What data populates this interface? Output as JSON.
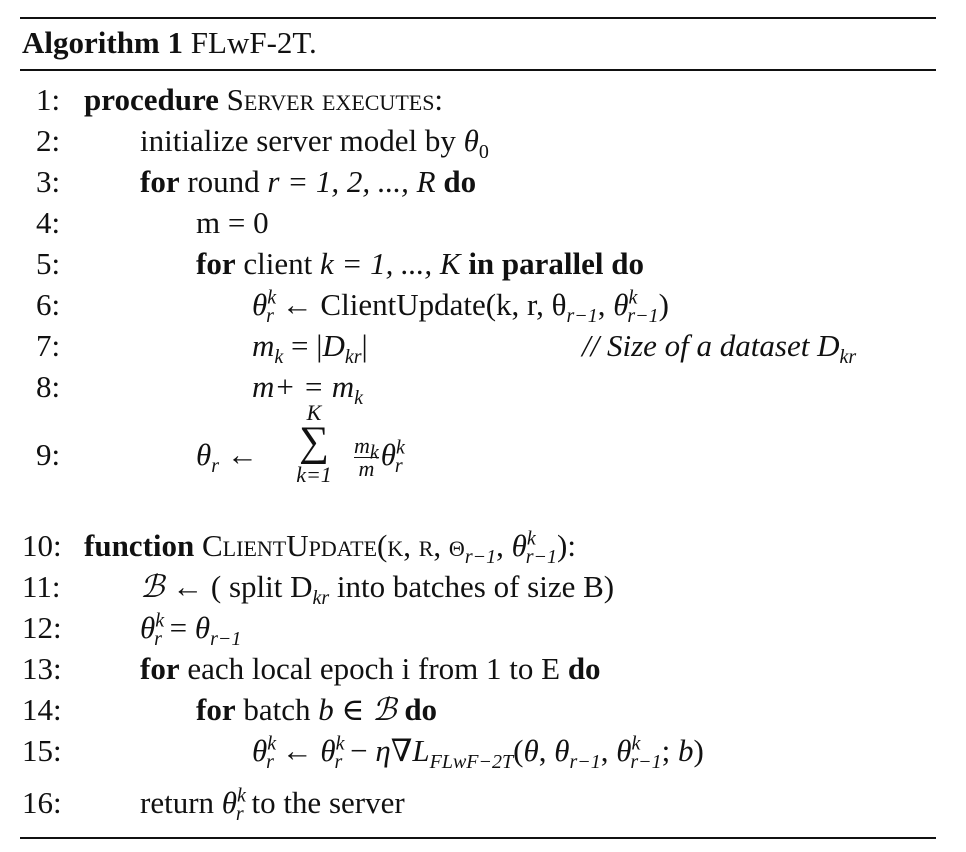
{
  "algorithm": {
    "label": "Algorithm 1",
    "name": "FLwF-2T.",
    "lines": [
      {
        "n": "1:"
      },
      {
        "n": "2:"
      },
      {
        "n": "3:"
      },
      {
        "n": "4:"
      },
      {
        "n": "5:"
      },
      {
        "n": "6:"
      },
      {
        "n": "7:"
      },
      {
        "n": "8:"
      },
      {
        "n": "9:"
      },
      {
        "n": "10:"
      },
      {
        "n": "11:"
      },
      {
        "n": "12:"
      },
      {
        "n": "13:"
      },
      {
        "n": "14:"
      },
      {
        "n": "15:"
      },
      {
        "n": "16:"
      }
    ],
    "text": {
      "procedure": "procedure",
      "server_executes": "Server executes:",
      "init": "initialize server model by",
      "theta0": "θ",
      "zero": "0",
      "for": "for",
      "round": "round",
      "r_eq": "r = 1, 2, ..., R",
      "do": "do",
      "m_eq": "m = 0",
      "client": "client",
      "k_eq": "k = 1, ..., K",
      "in_parallel_do": "in parallel do",
      "clientupdate_call": "ClientUpdate(k, r, θ",
      "m_k_eq": "m",
      "size_comment": "// Size of a dataset D",
      "mplus": "m+ = m",
      "function": "function",
      "clientupdate_def": "ClientUpdate(k, r, θ",
      "split": "( split D",
      "into_batches": "into batches of size B)",
      "each_local_epoch": "each local epoch",
      "from_to": "i from 1 to E",
      "batch": "batch",
      "b_in": "b ∈ ℬ",
      "return": "return",
      "to_server": "to the server",
      "sum_top": "K",
      "sum_bot": "k=1",
      "loss_sub": "FLwF−2T"
    }
  }
}
